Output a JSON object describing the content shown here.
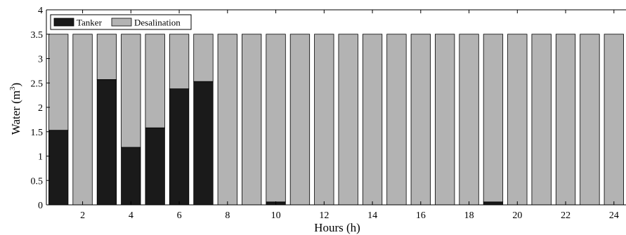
{
  "chart_data": {
    "type": "bar",
    "stacked": true,
    "categories": [
      "1",
      "2",
      "3",
      "4",
      "5",
      "6",
      "7",
      "8",
      "9",
      "10",
      "11",
      "12",
      "13",
      "14",
      "15",
      "16",
      "17",
      "18",
      "19",
      "20",
      "21",
      "22",
      "23",
      "24"
    ],
    "x_tick_labels": [
      "2",
      "4",
      "6",
      "8",
      "10",
      "12",
      "14",
      "16",
      "18",
      "20",
      "22",
      "24"
    ],
    "series": [
      {
        "name": "Tanker",
        "color": "#1a1a1a",
        "values": [
          1.53,
          0,
          2.57,
          1.18,
          1.58,
          2.38,
          2.53,
          0,
          0,
          0.06,
          0,
          0,
          0,
          0,
          0,
          0,
          0,
          0,
          0.06,
          0,
          0,
          0,
          0,
          0
        ]
      },
      {
        "name": "Desalination",
        "color": "#b3b3b3",
        "values": [
          1.97,
          3.5,
          0.93,
          2.32,
          1.92,
          1.12,
          0.97,
          3.5,
          3.5,
          3.44,
          3.5,
          3.5,
          3.5,
          3.5,
          3.5,
          3.5,
          3.5,
          3.5,
          3.44,
          3.5,
          3.5,
          3.5,
          3.5,
          3.5
        ]
      }
    ],
    "xlabel": "Hours (h)",
    "ylabel_main": "Water (m",
    "ylabel_sup": "3",
    "ylabel_end": ")",
    "ylim": [
      0,
      4
    ],
    "y_ticks": [
      "0",
      "0.5",
      "1",
      "1.5",
      "2",
      "2.5",
      "3",
      "3.5",
      "4"
    ],
    "legend_position": "top-left",
    "grid": false
  }
}
